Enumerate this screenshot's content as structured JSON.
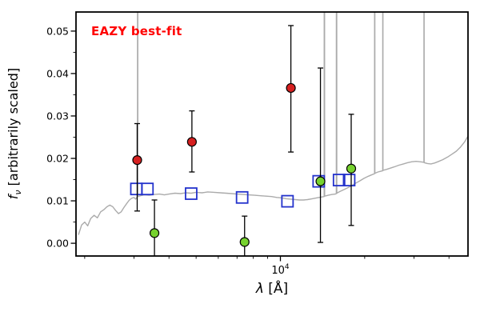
{
  "annotation": {
    "text": "EAZY best-fit",
    "color": "#ff0000"
  },
  "axes": {
    "xlabel_symbol": "λ",
    "xlabel_rest": " [Å]",
    "ylabel_symbol": "f",
    "ylabel_sub": "ν",
    "ylabel_rest": " [arbitrarily scaled]",
    "x_major_base": "10",
    "x_major_exp": "4"
  },
  "chart_data": {
    "type": "line+scatter",
    "title": "",
    "grid": false,
    "legend": "none",
    "x_axis": {
      "scale": "log10",
      "unit": "Angstrom",
      "domain_log10": [
        3.27,
        4.67
      ],
      "major_ticks": [
        10000
      ],
      "minor_ticks": [
        2000,
        3000,
        4000,
        5000,
        6000,
        7000,
        8000,
        9000,
        20000,
        30000,
        40000
      ]
    },
    "y_axis": {
      "domain": [
        -0.003,
        0.0545
      ],
      "major_ticks": [
        0,
        0.01,
        0.02,
        0.03,
        0.04,
        0.05
      ],
      "minor_ticks": [
        0.005,
        0.015,
        0.025,
        0.035,
        0.045
      ],
      "label_decimals": 2
    },
    "series": {
      "model_spectrum": {
        "marker": "line",
        "color": "#ababab",
        "points": [
          [
            1900,
            0.002
          ],
          [
            1950,
            0.0043
          ],
          [
            2000,
            0.005
          ],
          [
            2050,
            0.0041
          ],
          [
            2100,
            0.0058
          ],
          [
            2160,
            0.0066
          ],
          [
            2220,
            0.006
          ],
          [
            2280,
            0.0074
          ],
          [
            2340,
            0.0079
          ],
          [
            2400,
            0.0086
          ],
          [
            2460,
            0.009
          ],
          [
            2520,
            0.0086
          ],
          [
            2580,
            0.0077
          ],
          [
            2640,
            0.007
          ],
          [
            2700,
            0.0074
          ],
          [
            2760,
            0.0084
          ],
          [
            2820,
            0.0093
          ],
          [
            2880,
            0.0101
          ],
          [
            2940,
            0.0106
          ],
          [
            3000,
            0.0108
          ],
          [
            3040,
            0.0104
          ],
          [
            3075,
            0.0108
          ],
          [
            3088,
            0.011
          ],
          [
            3092,
            0.2
          ],
          [
            3096,
            0.011
          ],
          [
            3160,
            0.0112
          ],
          [
            3260,
            0.0114
          ],
          [
            3400,
            0.0113
          ],
          [
            3550,
            0.0115
          ],
          [
            3700,
            0.0116
          ],
          [
            3850,
            0.0114
          ],
          [
            4000,
            0.0116
          ],
          [
            4200,
            0.0118
          ],
          [
            4400,
            0.0117
          ],
          [
            4600,
            0.0119
          ],
          [
            4800,
            0.0118
          ],
          [
            5000,
            0.012
          ],
          [
            5250,
            0.0119
          ],
          [
            5500,
            0.0121
          ],
          [
            5800,
            0.012
          ],
          [
            6100,
            0.0119
          ],
          [
            6400,
            0.0118
          ],
          [
            6700,
            0.0117
          ],
          [
            7000,
            0.0116
          ],
          [
            7350,
            0.0115
          ],
          [
            7700,
            0.0114
          ],
          [
            8100,
            0.0113
          ],
          [
            8500,
            0.0112
          ],
          [
            8900,
            0.0111
          ],
          [
            9300,
            0.011
          ],
          [
            9700,
            0.0108
          ],
          [
            10100,
            0.0107
          ],
          [
            10500,
            0.0105
          ],
          [
            10900,
            0.0104
          ],
          [
            11300,
            0.0103
          ],
          [
            11700,
            0.0102
          ],
          [
            12100,
            0.0102
          ],
          [
            12500,
            0.0103
          ],
          [
            13000,
            0.0105
          ],
          [
            13500,
            0.0107
          ],
          [
            14000,
            0.0109
          ],
          [
            14330,
            0.011
          ],
          [
            14360,
            0.2
          ],
          [
            14390,
            0.0111
          ],
          [
            14800,
            0.0113
          ],
          [
            15300,
            0.0115
          ],
          [
            15700,
            0.0116
          ],
          [
            15840,
            0.0117
          ],
          [
            15870,
            0.2
          ],
          [
            15900,
            0.0118
          ],
          [
            16300,
            0.0122
          ],
          [
            16800,
            0.0126
          ],
          [
            17300,
            0.013
          ],
          [
            17900,
            0.0135
          ],
          [
            18500,
            0.0141
          ],
          [
            19200,
            0.0147
          ],
          [
            19900,
            0.0153
          ],
          [
            20600,
            0.0158
          ],
          [
            21300,
            0.0162
          ],
          [
            21690,
            0.0164
          ],
          [
            21720,
            0.2
          ],
          [
            21750,
            0.0165
          ],
          [
            22300,
            0.0168
          ],
          [
            22900,
            0.017
          ],
          [
            23190,
            0.0171
          ],
          [
            23220,
            0.2
          ],
          [
            23250,
            0.0172
          ],
          [
            23900,
            0.0174
          ],
          [
            24700,
            0.0177
          ],
          [
            25500,
            0.018
          ],
          [
            26500,
            0.0184
          ],
          [
            27500,
            0.0187
          ],
          [
            28500,
            0.019
          ],
          [
            29500,
            0.0192
          ],
          [
            30500,
            0.0193
          ],
          [
            31500,
            0.0192
          ],
          [
            32560,
            0.0191
          ],
          [
            32590,
            0.2
          ],
          [
            32620,
            0.019
          ],
          [
            33500,
            0.0188
          ],
          [
            34500,
            0.0187
          ],
          [
            35500,
            0.0189
          ],
          [
            36500,
            0.0192
          ],
          [
            38000,
            0.0197
          ],
          [
            39500,
            0.0203
          ],
          [
            41000,
            0.021
          ],
          [
            42500,
            0.0217
          ],
          [
            44000,
            0.0227
          ],
          [
            45500,
            0.0239
          ],
          [
            46700,
            0.0252
          ]
        ]
      },
      "model_photometry": {
        "marker": "open-square",
        "color": "#2433cc",
        "points": [
          [
            3060,
            0.0128
          ],
          [
            3350,
            0.0128
          ],
          [
            4800,
            0.0117
          ],
          [
            7300,
            0.0108
          ],
          [
            10600,
            0.0099
          ],
          [
            13700,
            0.0146
          ],
          [
            16200,
            0.0149
          ],
          [
            17600,
            0.0149
          ]
        ]
      },
      "observed_red": {
        "marker": "circle",
        "color": "#d62020",
        "points": [
          {
            "x": 3080,
            "y": 0.0196,
            "lo": 0.0076,
            "hi": 0.0282
          },
          {
            "x": 4830,
            "y": 0.0239,
            "lo": 0.0168,
            "hi": 0.0312
          },
          {
            "x": 10900,
            "y": 0.0366,
            "lo": 0.0215,
            "hi": 0.0513
          }
        ]
      },
      "observed_green": {
        "marker": "circle",
        "color": "#76d22e",
        "points": [
          {
            "x": 3550,
            "y": 0.0024,
            "lo": -0.006,
            "hi": 0.0102
          },
          {
            "x": 7450,
            "y": 0.0003,
            "lo": -0.004,
            "hi": 0.0064
          },
          {
            "x": 13900,
            "y": 0.0146,
            "lo": 0.0002,
            "hi": 0.0413
          },
          {
            "x": 17900,
            "y": 0.0176,
            "lo": 0.0042,
            "hi": 0.0304
          }
        ]
      }
    }
  }
}
